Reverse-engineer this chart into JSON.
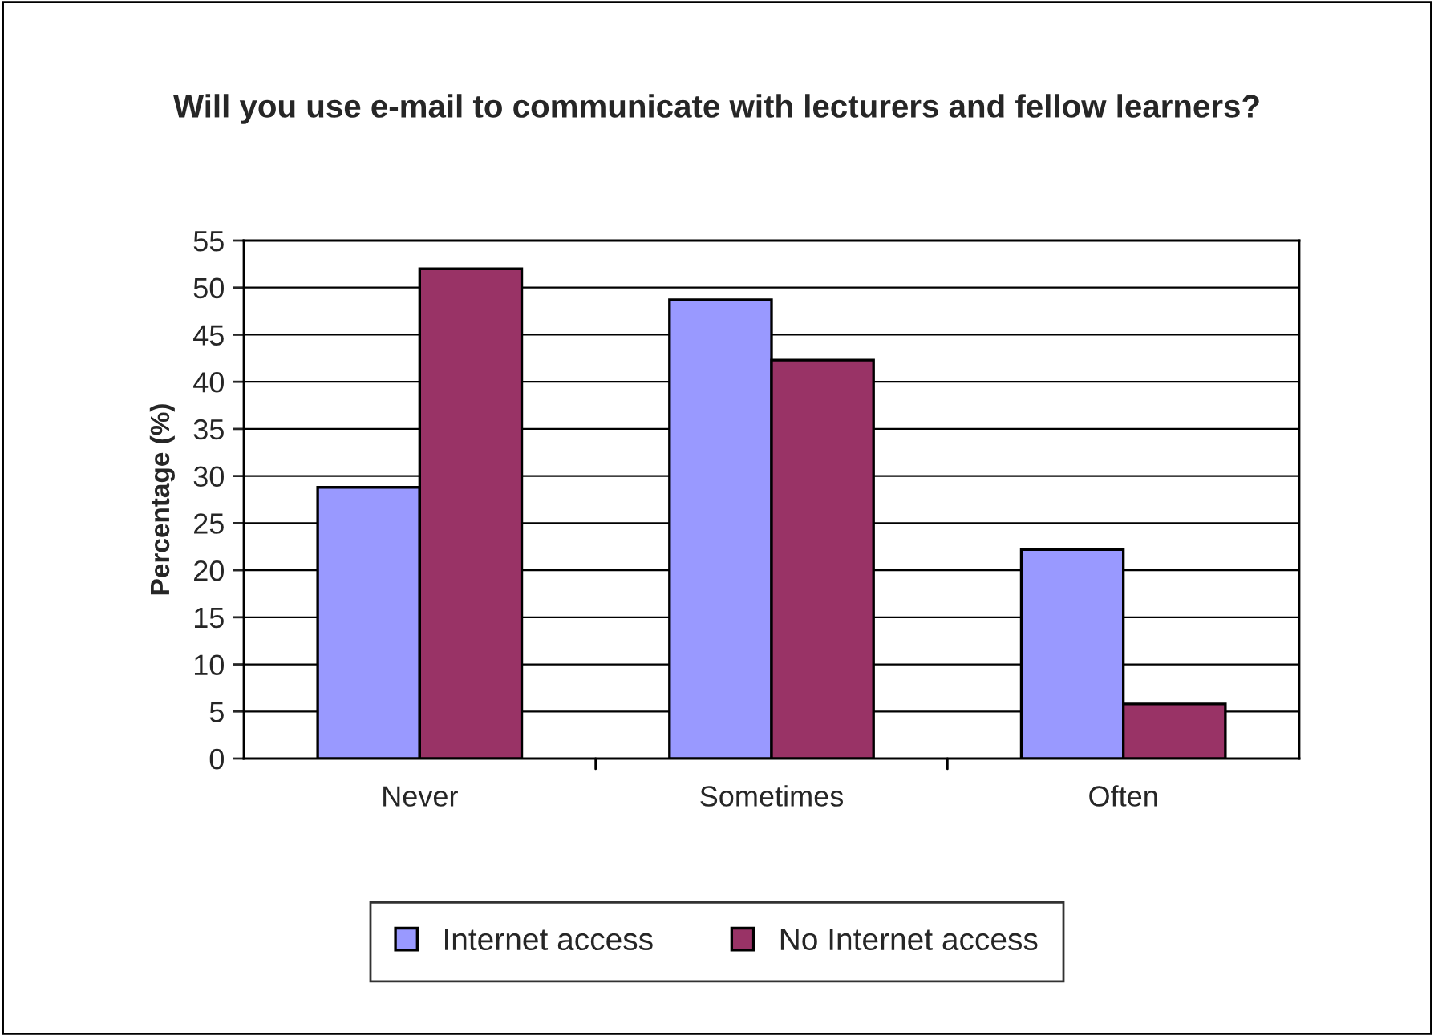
{
  "chart_data": {
    "type": "bar",
    "title": "Will you use e-mail to communicate with lecturers and fellow learners?",
    "ylabel": "Percentage (%)",
    "categories": [
      "Never",
      "Sometimes",
      "Often"
    ],
    "series": [
      {
        "name": "Internet access",
        "color": "#9999ff",
        "values": [
          28.8,
          48.7,
          22.2
        ]
      },
      {
        "name": "No Internet access",
        "color": "#993366",
        "values": [
          52.0,
          42.3,
          5.8
        ]
      }
    ],
    "ylim": [
      0,
      55
    ],
    "yticks": [
      0,
      5,
      10,
      15,
      20,
      25,
      30,
      35,
      40,
      45,
      50,
      55
    ],
    "grid": "y",
    "legend": "bottom"
  }
}
